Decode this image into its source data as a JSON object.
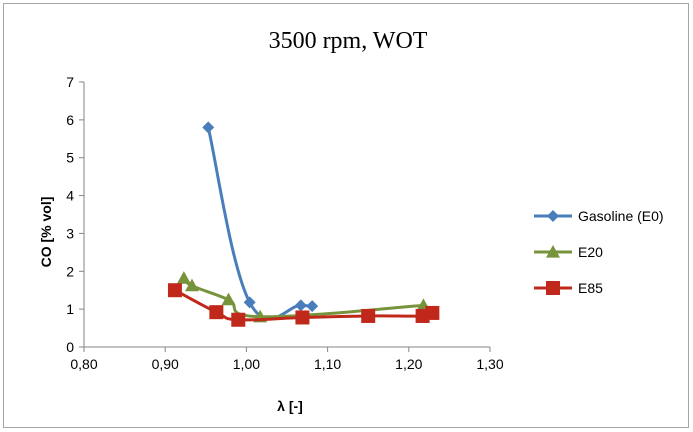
{
  "chart_data": {
    "type": "scatter",
    "title": "3500 rpm, WOT",
    "xlabel": "λ [-]",
    "ylabel": "CO [% vol]",
    "xlim": [
      0.8,
      1.3
    ],
    "ylim": [
      0,
      7
    ],
    "x_ticks": [
      "0,80",
      "0,90",
      "1,00",
      "1,10",
      "1,20",
      "1,30"
    ],
    "y_ticks": [
      "0",
      "1",
      "2",
      "3",
      "4",
      "5",
      "6",
      "7"
    ],
    "grid": false,
    "legend_position": "right",
    "series": [
      {
        "name": "Gasoline (E0)",
        "color": "#4a7ebb",
        "marker": "diamond",
        "x": [
          0.953,
          1.004,
          1.067,
          1.081
        ],
        "y": [
          5.8,
          1.18,
          1.1,
          1.08
        ]
      },
      {
        "name": "E20",
        "color": "#77933c",
        "marker": "triangle",
        "x": [
          0.923,
          0.933,
          0.978,
          1.017,
          1.218
        ],
        "y": [
          1.82,
          1.62,
          1.25,
          0.8,
          1.1
        ]
      },
      {
        "name": "E85",
        "color": "#c0281c",
        "marker": "square",
        "x": [
          0.912,
          0.963,
          0.99,
          1.069,
          1.15,
          1.217,
          1.229
        ],
        "y": [
          1.5,
          0.92,
          0.72,
          0.78,
          0.82,
          0.82,
          0.9
        ]
      }
    ]
  }
}
